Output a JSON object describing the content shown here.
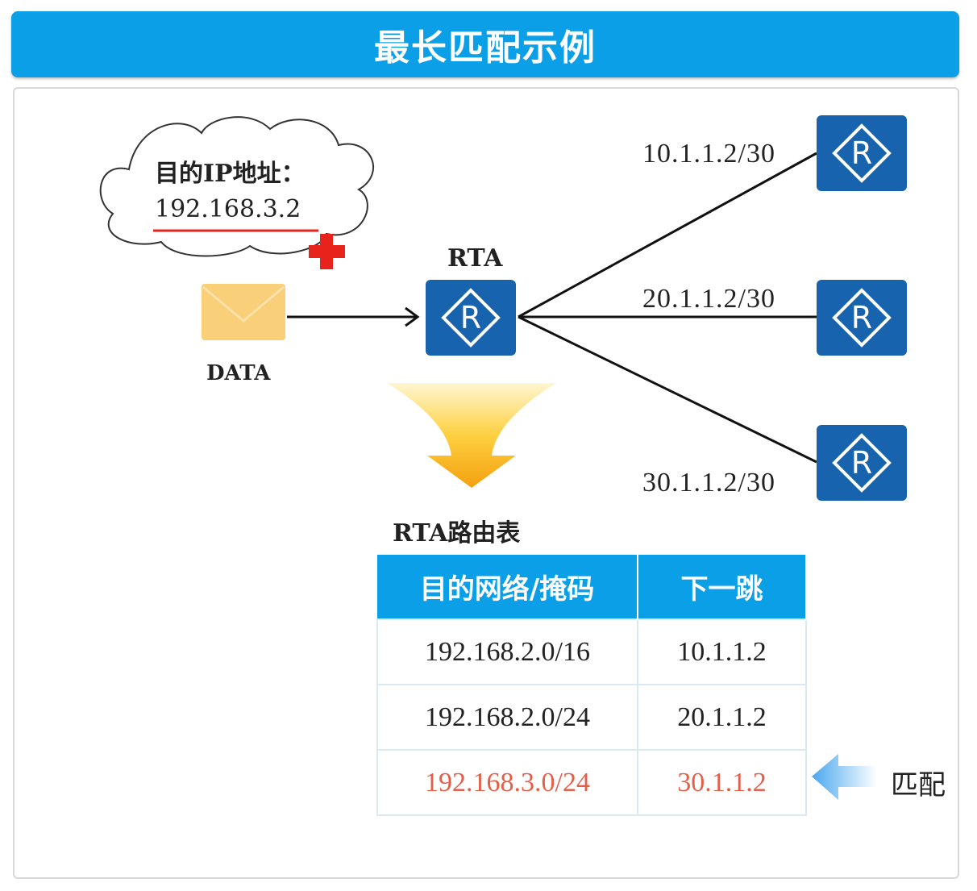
{
  "title": "最长匹配示例",
  "cloud": {
    "label": "目的IP地址：",
    "ip": "192.168.3.2"
  },
  "packet_label": "DATA",
  "router_label": "RTA",
  "links": [
    "10.1.1.2/30",
    "20.1.1.2/30",
    "30.1.1.2/30"
  ],
  "table": {
    "title": "RTA路由表",
    "headers": [
      "目的网络/掩码",
      "下一跳"
    ],
    "rows": [
      {
        "dest": "192.168.2.0/16",
        "next_hop": "10.1.1.2"
      },
      {
        "dest": "192.168.2.0/24",
        "next_hop": "20.1.1.2"
      },
      {
        "dest": "192.168.3.0/24",
        "next_hop": "30.1.1.2"
      }
    ],
    "matched_row": 3,
    "match_label": "匹配"
  },
  "colors": {
    "header": "#0b9fe8",
    "router": "#1763ae",
    "match": "#e0604a",
    "envelope": "#f9cf7a",
    "cross": "#e8231c"
  }
}
